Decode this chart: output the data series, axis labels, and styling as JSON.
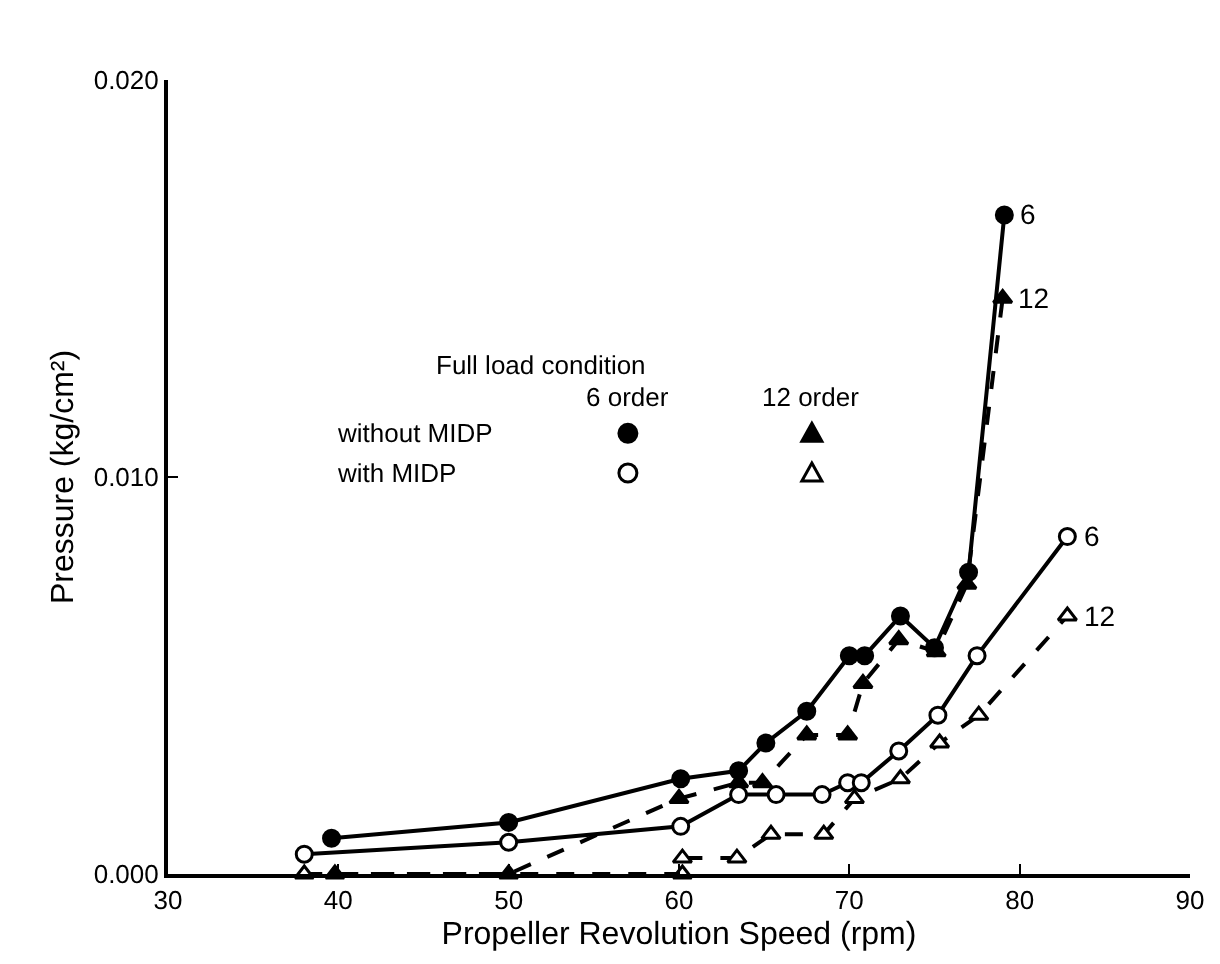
{
  "chart_data": {
    "type": "line",
    "xlabel": "Propeller Revolution Speed (rpm)",
    "ylabel": "Pressure (kg/cm²)",
    "xlim": [
      30,
      90
    ],
    "xticks": [
      30,
      40,
      50,
      60,
      70,
      80,
      90
    ],
    "ylim": [
      0,
      0.02
    ],
    "yticks": [
      {
        "value": 0,
        "label": "0.000"
      },
      {
        "value": 0.01,
        "label": "0.010"
      },
      {
        "value": 0.02,
        "label": "0.020"
      }
    ],
    "grid": false,
    "series": [
      {
        "color": "#000000",
        "marker": "circle",
        "line_style": "solid",
        "x": [
          39.6,
          50,
          60.1,
          63.5,
          65.1,
          67.5,
          70,
          70.9,
          73,
          75,
          77,
          79.1
        ],
        "values": [
          0.0009,
          0.0013,
          0.0024,
          0.0026,
          0.0033,
          0.0041,
          0.0055,
          0.0055,
          0.0065,
          0.0057,
          0.0076,
          0.0166
        ]
      },
      {
        "color": "#000000",
        "marker": "triangle",
        "line_style": "dashed",
        "x": [
          39.8,
          50,
          60,
          63.5,
          64.9,
          67.5,
          69.9,
          70.8,
          72.9,
          75.1,
          76.9,
          79
        ],
        "values": [
          0,
          0,
          0.0019,
          0.0023,
          0.0023,
          0.0035,
          0.0035,
          0.0048,
          0.0059,
          0.0056,
          0.0073,
          0.0145
        ]
      },
      {
        "color": "#000000",
        "colors": [
          "#ffffff",
          "#ffffff",
          "#ffffff",
          "#ffffff",
          "#ffffff",
          "#ffffff",
          "#ffffff",
          "#ffffff",
          "#ffffff",
          "#ffffff",
          "#ffffff",
          "#ffffff"
        ],
        "marker": "circle",
        "line_style": "solid",
        "x": [
          38,
          50,
          60.1,
          63.5,
          65.7,
          68.4,
          69.9,
          70.7,
          72.9,
          75.2,
          77.5,
          82.8
        ],
        "values": [
          0.0005,
          0.0008,
          0.0012,
          0.002,
          0.002,
          0.002,
          0.0023,
          0.0023,
          0.0031,
          0.004,
          0.0055,
          0.0085
        ]
      },
      {
        "color": "#000000",
        "colors": [
          "#ffffff",
          "#ffffff",
          "#ffffff",
          "#ffffff",
          "#ffffff",
          "#ffffff",
          "#ffffff",
          "#ffffff",
          "#ffffff",
          "#ffffff",
          "#ffffff"
        ],
        "marker": "triangle",
        "line_style": "dashed",
        "x": [
          38,
          60.2,
          60.2,
          63.4,
          65.4,
          68.5,
          70.3,
          73,
          75.3,
          77.6,
          82.8
        ],
        "values": [
          0,
          0,
          0.0004,
          0.0004,
          0.001,
          0.001,
          0.0019,
          0.0024,
          0.0033,
          0.004,
          0.0065
        ]
      }
    ],
    "annotations": [
      "Full load condition",
      "6 order",
      "12 order",
      "without MIDP",
      "with MIDP",
      {
        "text": "6",
        "x": 79.1,
        "y": 0.0166
      },
      {
        "text": "12",
        "x": 79,
        "y": 0.0145
      },
      {
        "text": "6",
        "x": 82.8,
        "y": 0.0085
      },
      {
        "text": "12",
        "x": 82.8,
        "y": 0.0065
      }
    ]
  }
}
